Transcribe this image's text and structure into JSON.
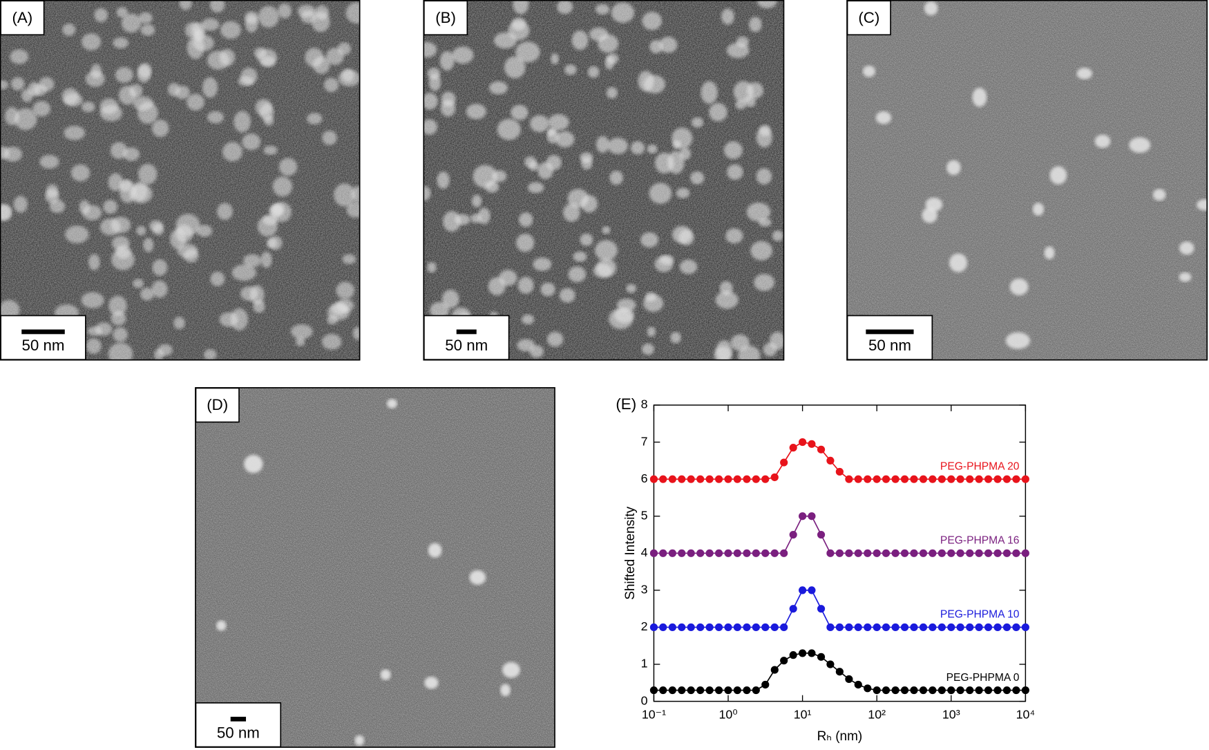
{
  "panels": [
    {
      "label": "(A)",
      "scale_bar": "50 nm"
    },
    {
      "label": "(B)",
      "scale_bar": "50 nm"
    },
    {
      "label": "(C)",
      "scale_bar": "50 nm"
    },
    {
      "label": "(D)",
      "scale_bar": "50 nm"
    }
  ],
  "chart_data": {
    "type": "line",
    "panel_label": "(E)",
    "x_label": "Rₕ (nm)",
    "y_label": "Shifted Intensity",
    "log_x": true,
    "xlim": [
      0.1,
      10000
    ],
    "xticks": [
      {
        "value": 0.1,
        "label": "10⁻¹"
      },
      {
        "value": 1,
        "label": "10⁰"
      },
      {
        "value": 10,
        "label": "10¹"
      },
      {
        "value": 100,
        "label": "10²"
      },
      {
        "value": 1000,
        "label": "10³"
      },
      {
        "value": 10000,
        "label": "10⁴"
      }
    ],
    "ylim": [
      0,
      8
    ],
    "yticks": [
      0,
      1,
      2,
      3,
      4,
      5,
      6,
      7,
      8
    ],
    "x": [
      0.1,
      0.133,
      0.178,
      0.237,
      0.316,
      0.422,
      0.562,
      0.75,
      1,
      1.33,
      1.78,
      2.37,
      3.16,
      4.22,
      5.62,
      7.5,
      10,
      13.3,
      17.8,
      23.7,
      31.6,
      42.2,
      56.2,
      75,
      100,
      133,
      178,
      237,
      316,
      422,
      562,
      750,
      1000,
      1330,
      1780,
      2370,
      3160,
      4220,
      5620,
      7500,
      10000
    ],
    "series": [
      {
        "name": "PEG-PHPMA 20",
        "color": "#e8131b",
        "values": [
          6,
          6,
          6,
          6,
          6,
          6,
          6,
          6,
          6,
          6,
          6,
          6,
          6,
          6.05,
          6.45,
          6.85,
          7,
          6.95,
          6.8,
          6.5,
          6.2,
          6,
          6,
          6,
          6,
          6,
          6,
          6,
          6,
          6,
          6,
          6,
          6,
          6,
          6,
          6,
          6,
          6,
          6,
          6,
          6
        ]
      },
      {
        "name": "PEG-PHPMA 16",
        "color": "#7a1f7f",
        "values": [
          4,
          4,
          4,
          4,
          4,
          4,
          4,
          4,
          4,
          4,
          4,
          4,
          4,
          4,
          4,
          4.5,
          5,
          5,
          4.5,
          4,
          4,
          4,
          4,
          4,
          4,
          4,
          4,
          4,
          4,
          4,
          4,
          4,
          4,
          4,
          4,
          4,
          4,
          4,
          4,
          4,
          4
        ]
      },
      {
        "name": "PEG-PHPMA 10",
        "color": "#1a1adc",
        "values": [
          2,
          2,
          2,
          2,
          2,
          2,
          2,
          2,
          2,
          2,
          2,
          2,
          2,
          2,
          2,
          2.5,
          3,
          3,
          2.5,
          2,
          2,
          2,
          2,
          2,
          2,
          2,
          2,
          2,
          2,
          2,
          2,
          2,
          2,
          2,
          2,
          2,
          2,
          2,
          2,
          2,
          2
        ]
      },
      {
        "name": "PEG-PHPMA 0",
        "color": "#000000",
        "values": [
          0.3,
          0.3,
          0.3,
          0.3,
          0.3,
          0.3,
          0.3,
          0.3,
          0.3,
          0.3,
          0.3,
          0.3,
          0.45,
          0.85,
          1.1,
          1.25,
          1.3,
          1.3,
          1.2,
          1,
          0.8,
          0.6,
          0.45,
          0.35,
          0.3,
          0.3,
          0.3,
          0.3,
          0.3,
          0.3,
          0.3,
          0.3,
          0.3,
          0.3,
          0.3,
          0.3,
          0.3,
          0.3,
          0.3,
          0.3,
          0.3
        ]
      }
    ]
  }
}
